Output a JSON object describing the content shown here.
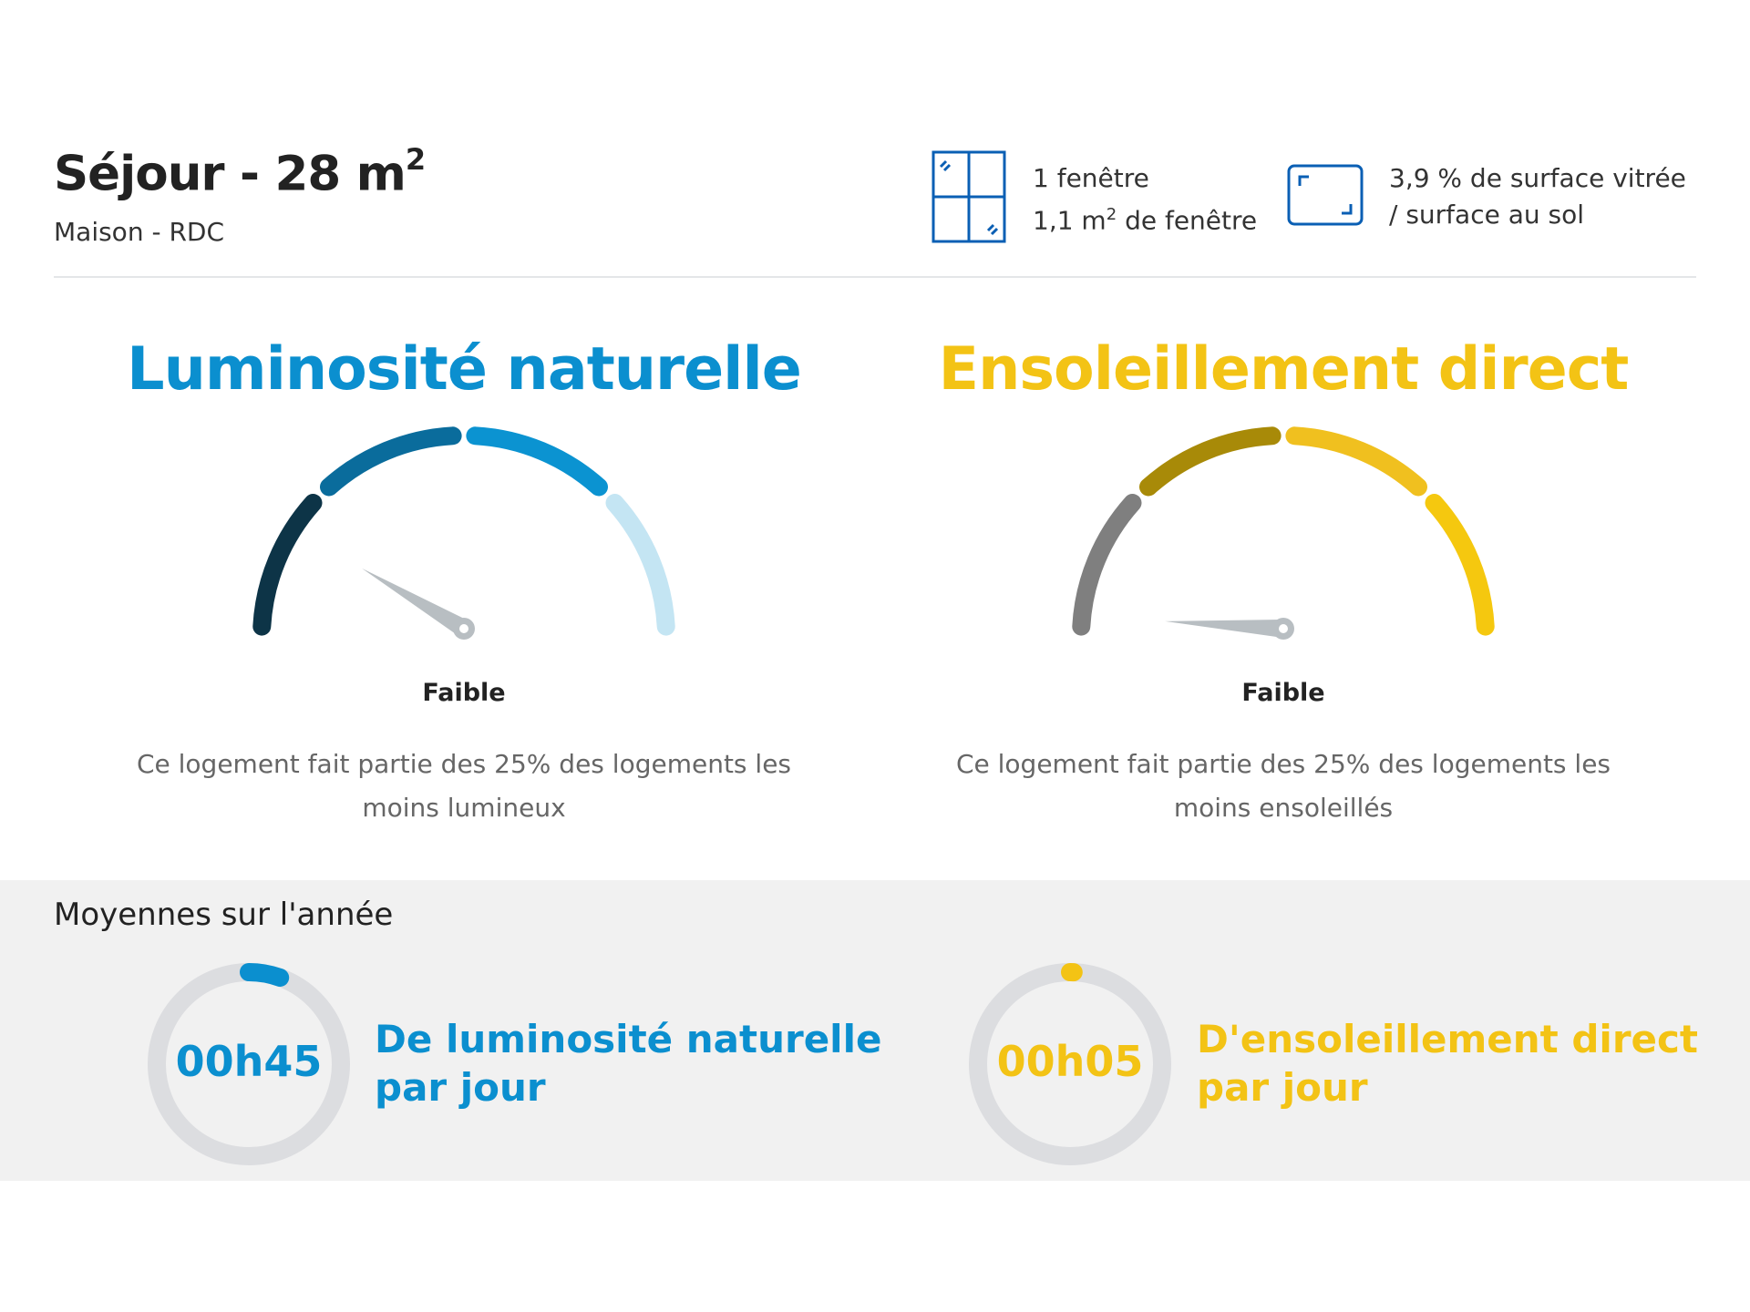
{
  "header": {
    "room": "Séjour - 28 m",
    "room_exp": "2",
    "location": "Maison - RDC",
    "windows": {
      "icon": "window-icon",
      "line1": "1 fenêtre",
      "line2_prefix": "1,1 m",
      "line2_exp": "2",
      "line2_suffix": " de fenêtre"
    },
    "glazing": {
      "icon": "floor-area-icon",
      "line1": "3,9 % de surface vitrée",
      "line2": "/ surface au sol"
    }
  },
  "gauges": [
    {
      "title": "Luminosité naturelle",
      "color": "#0b8fcf",
      "segment_colors": [
        "#0d3447",
        "#0a6c9c",
        "#0b93d1",
        "#c4e5f3"
      ],
      "needle_value": 0.17,
      "level": "Faible",
      "description": "Ce logement fait partie des 25% des logements les moins lumineux"
    },
    {
      "title": "Ensoleillement direct",
      "color": "#f3c315",
      "segment_colors": [
        "#7f7f7f",
        "#a88a08",
        "#f0c01f",
        "#f5c80f"
      ],
      "needle_value": 0.02,
      "level": "Faible",
      "description": "Ce logement fait partie des 25% des logements les moins ensoleillés"
    }
  ],
  "averages": {
    "title": "Moyennes sur l'année",
    "items": [
      {
        "value": "00h45",
        "line1": "De luminosité naturelle",
        "line2": "par jour",
        "color": "#0b8fcf",
        "progress": 0.055
      },
      {
        "value": "00h05",
        "line1": "D'ensoleillement direct",
        "line2": "par jour",
        "color": "#f3c315",
        "progress": 0.006
      }
    ]
  },
  "colors": {
    "ring_track": "#dcdde0",
    "needle": "#b8bec2",
    "icon_blue": "#0a5fb4"
  }
}
